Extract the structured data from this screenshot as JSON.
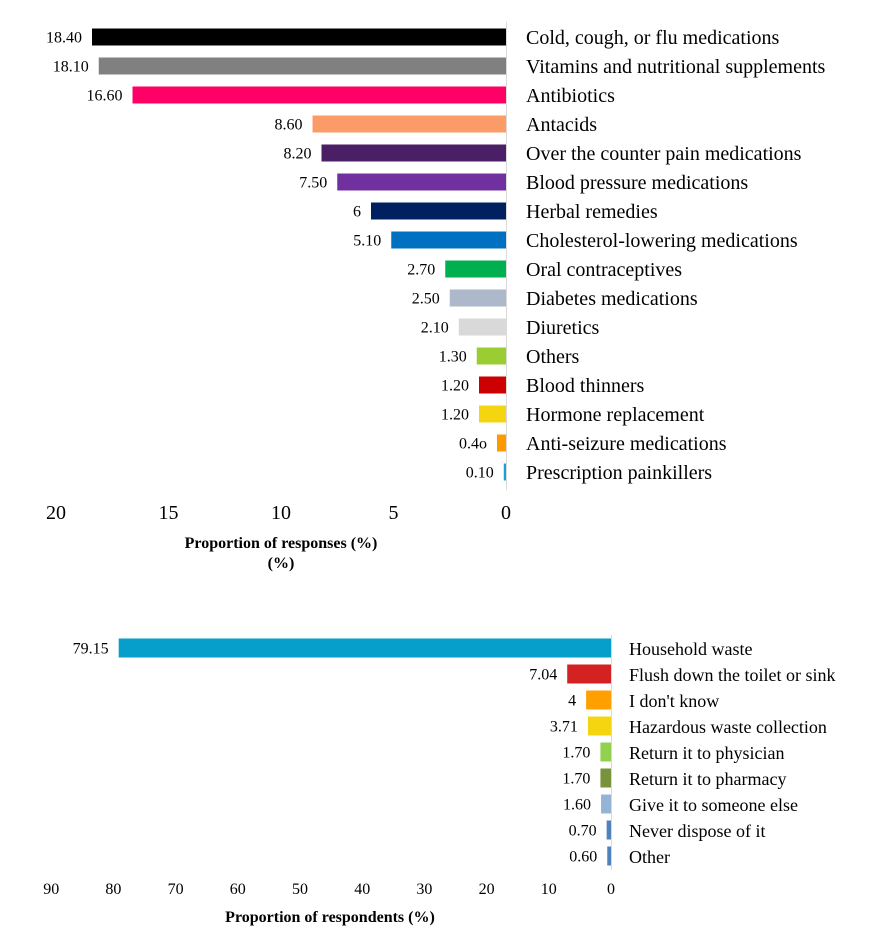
{
  "chart_data": [
    {
      "type": "bar",
      "orientation": "horizontal",
      "direction": "reversed",
      "title": "",
      "xlabel": "Proportion of responses (%)",
      "xlabel_line2": "(%)",
      "ylabel": "",
      "xlim": [
        0,
        20
      ],
      "xticks": [
        "20",
        "15",
        "10",
        "5",
        "0"
      ],
      "xtick_values": [
        20,
        15,
        10,
        5,
        0
      ],
      "grid": false,
      "legend": "none",
      "categories": [
        "Cold, cough, or flu medications",
        "Vitamins and nutritional supplements",
        "Antibiotics",
        "Antacids",
        "Over the counter pain medications",
        "Blood pressure medications",
        "Herbal remedies",
        "Cholesterol-lowering medications",
        "Oral contraceptives",
        "Diabetes medications",
        "Diuretics",
        "Others",
        "Blood thinners",
        "Hormone replacement",
        "Anti-seizure medications",
        "Prescription painkillers"
      ],
      "values": [
        18.4,
        18.1,
        16.6,
        8.6,
        8.2,
        7.5,
        6,
        5.1,
        2.7,
        2.5,
        2.1,
        1.3,
        1.2,
        1.2,
        0.4,
        0.1
      ],
      "data_labels": [
        "18.40",
        "18.10",
        "16.60",
        "8.60",
        "8.20",
        "7.50",
        "6",
        "5.10",
        "2.70",
        "2.50",
        "2.10",
        "1.30",
        "1.20",
        "1.20",
        "0.4o",
        "0.10"
      ],
      "colors": [
        "#000000",
        "#808080",
        "#ff0066",
        "#fb9b68",
        "#4a1f66",
        "#7030a0",
        "#002060",
        "#0070c0",
        "#00b050",
        "#adb9ca",
        "#d9d9d9",
        "#9acd32",
        "#cc0000",
        "#f5d410",
        "#ff9900",
        "#1f9fd6"
      ]
    },
    {
      "type": "bar",
      "orientation": "horizontal",
      "direction": "reversed",
      "title": "",
      "xlabel": "Proportion of respondents (%)",
      "ylabel": "",
      "xlim": [
        0,
        90
      ],
      "xticks": [
        "90",
        "80",
        "70",
        "60",
        "50",
        "40",
        "30",
        "20",
        "10",
        "0"
      ],
      "xtick_values": [
        90,
        80,
        70,
        60,
        50,
        40,
        30,
        20,
        10,
        0
      ],
      "grid": false,
      "legend": "none",
      "categories": [
        "Household waste",
        "Flush down the toilet or sink",
        "I don't know",
        "Hazardous waste collection",
        "Return it to physician",
        "Return it to pharmacy",
        "Give it to someone else",
        "Never dispose of it",
        "Other"
      ],
      "values": [
        79.15,
        7.04,
        4,
        3.71,
        1.7,
        1.7,
        1.6,
        0.7,
        0.6
      ],
      "data_labels": [
        "79.15",
        "7.04",
        "4",
        "3.71",
        "1.70",
        "1.70",
        "1.60",
        "0.70",
        "0.60"
      ],
      "colors": [
        "#069ecb",
        "#d42222",
        "#ffa000",
        "#f5d410",
        "#92d050",
        "#77933c",
        "#95b3d7",
        "#4f81bd",
        "#4f81bd"
      ]
    }
  ]
}
